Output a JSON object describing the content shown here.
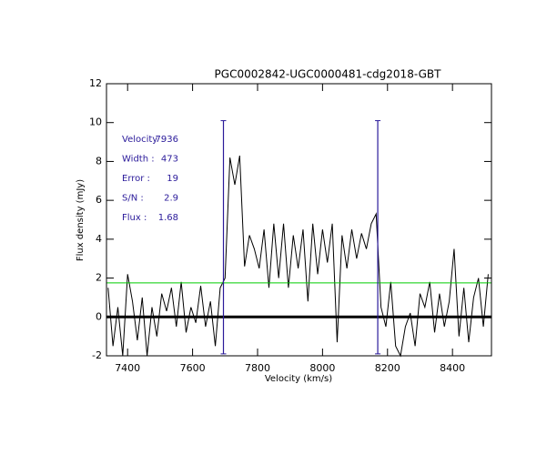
{
  "chart_data": {
    "type": "line",
    "title": "PGC0002842-UGC0000481-cdg2018-GBT",
    "x_label": "Velocity (km/s)",
    "y_label": "Flux density (mJy)",
    "x": [
      7340,
      7355,
      7370,
      7385,
      7400,
      7415,
      7430,
      7445,
      7460,
      7475,
      7490,
      7505,
      7520,
      7535,
      7550,
      7565,
      7580,
      7595,
      7610,
      7625,
      7640,
      7655,
      7670,
      7685,
      7700,
      7715,
      7730,
      7745,
      7760,
      7775,
      7790,
      7805,
      7820,
      7835,
      7850,
      7865,
      7880,
      7895,
      7910,
      7925,
      7940,
      7955,
      7970,
      7985,
      8000,
      8015,
      8030,
      8045,
      8060,
      8075,
      8090,
      8105,
      8120,
      8135,
      8150,
      8165,
      8180,
      8195,
      8210,
      8225,
      8240,
      8255,
      8270,
      8285,
      8300,
      8315,
      8330,
      8345,
      8360,
      8375,
      8390,
      8405,
      8420,
      8435,
      8450,
      8465,
      8480,
      8495,
      8510
    ],
    "series": [
      {
        "color": "#000000",
        "values": [
          1.5,
          -1.5,
          0.5,
          -2,
          2.2,
          0.8,
          -1.2,
          1,
          -2,
          0.5,
          -1,
          1.2,
          0.3,
          1.5,
          -0.5,
          1.8,
          -0.8,
          0.5,
          -0.3,
          1.6,
          -0.5,
          0.8,
          -1.5,
          1.5,
          2,
          8.2,
          6.8,
          8.3,
          2.6,
          4.2,
          3.5,
          2.5,
          4.5,
          1.5,
          4.8,
          2,
          4.8,
          1.5,
          4.2,
          2.5,
          4.5,
          0.8,
          4.8,
          2.2,
          4.5,
          2.8,
          4.8,
          -1.3,
          4.2,
          2.5,
          4.5,
          3,
          4.3,
          3.5,
          4.8,
          5.3,
          0.5,
          -0.5,
          1.8,
          -1.5,
          -2,
          -0.5,
          0.2,
          -1.5,
          1.2,
          0.5,
          1.8,
          -0.8,
          1.2,
          -0.5,
          0.8,
          3.5,
          -1,
          1.5,
          -1.3,
          1,
          2,
          -0.5,
          2.2
        ]
      }
    ],
    "xlim": [
      7335,
      8520
    ],
    "ylim": [
      -2,
      12
    ],
    "xticks": [
      7400,
      7600,
      7800,
      8000,
      8200,
      8400
    ],
    "yticks": [
      -2,
      0,
      2,
      4,
      6,
      8,
      10,
      12
    ],
    "hline": 1.75,
    "hline_color": "#00cc00",
    "markers": [
      7695,
      8170
    ],
    "marker_range": [
      -1.9,
      10.1
    ],
    "marker_color": "#2a1a9a",
    "annotations": [
      {
        "label": "Velocity :",
        "value": 7936
      },
      {
        "label": "Width :",
        "value": 473
      },
      {
        "label": "Error :",
        "value": 19
      },
      {
        "label": "S/N :",
        "value": 2.9
      },
      {
        "label": "Flux :",
        "value": 1.68
      }
    ]
  }
}
